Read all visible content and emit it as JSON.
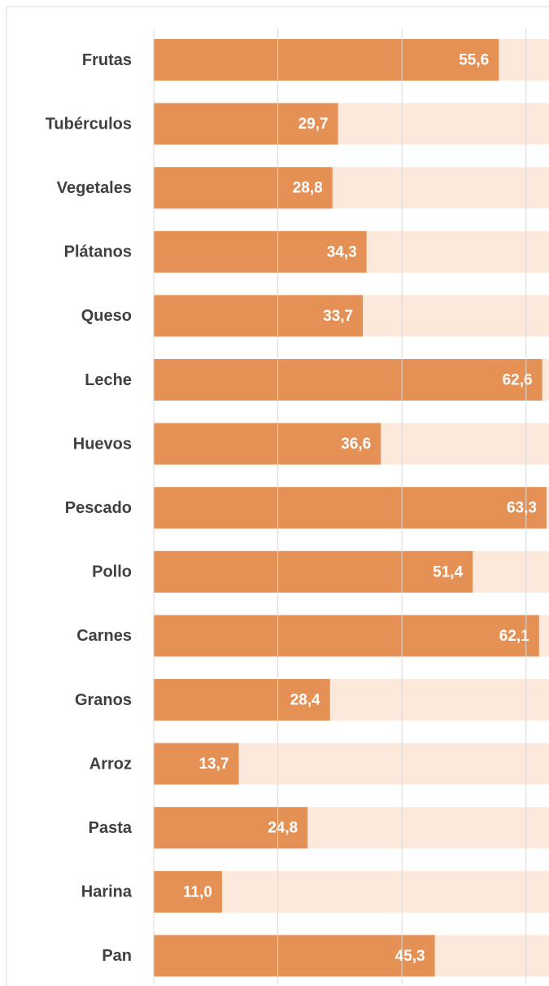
{
  "chart_data": {
    "type": "barh",
    "categories": [
      "Frutas",
      "Tubérculos",
      "Vegetales",
      "Plátanos",
      "Queso",
      "Leche",
      "Huevos",
      "Pescado",
      "Pollo",
      "Carnes",
      "Granos",
      "Arroz",
      "Pasta",
      "Harina",
      "Pan"
    ],
    "values": [
      55.6,
      29.7,
      28.8,
      34.3,
      33.7,
      62.6,
      36.6,
      63.3,
      51.4,
      62.1,
      28.4,
      13.7,
      24.8,
      11.0,
      45.3
    ],
    "value_labels": [
      "55,6",
      "29,7",
      "28,8",
      "34,3",
      "33,7",
      "62,6",
      "36,6",
      "63,3",
      "51,4",
      "62,1",
      "28,4",
      "13,7",
      "24,8",
      "11,0",
      "45,3"
    ],
    "color": "#e59155",
    "track_color": "#fce9dc",
    "xlim": [
      0,
      63.7
    ],
    "xticks": [
      0,
      20,
      40,
      60
    ],
    "grid": true
  }
}
